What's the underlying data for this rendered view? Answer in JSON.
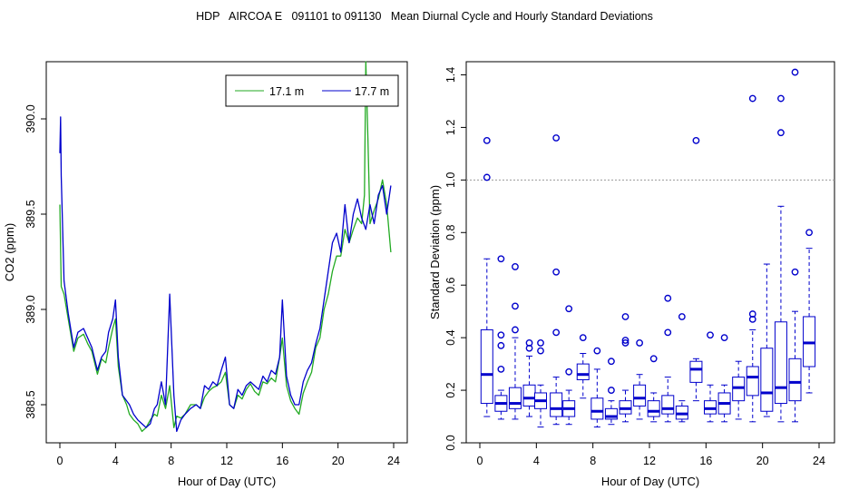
{
  "figure_title": "HDP   AIRCOA E   091101 to 091130   Mean Diurnal Cycle and Hourly Standard Deviations",
  "colors": {
    "green": "#22aa22",
    "blue": "#0000cc",
    "ref_line": "#999999",
    "axis": "#000000"
  },
  "chart_data": [
    {
      "type": "line",
      "title": "",
      "xlabel": "Hour of Day (UTC)",
      "ylabel": "CO2 (ppm)",
      "xlim": [
        0,
        24
      ],
      "ylim": [
        388.3,
        390.3
      ],
      "xticks": [
        0,
        4,
        8,
        12,
        16,
        20,
        24
      ],
      "xtick_labels": [
        "0",
        "4",
        "8",
        "12",
        "16",
        "20",
        "24"
      ],
      "yticks": [
        388.5,
        389.0,
        389.5,
        390.0
      ],
      "ytick_labels": [
        "388.5",
        "389.0",
        "389.5",
        "390.0"
      ],
      "legend": "top-right",
      "series": [
        {
          "name": "17.1 m",
          "color": "#22aa22",
          "x": [
            0.0,
            0.1,
            0.3,
            0.6,
            1.0,
            1.3,
            1.7,
            2.0,
            2.3,
            2.7,
            3.0,
            3.3,
            3.5,
            3.8,
            4.0,
            4.2,
            4.5,
            4.8,
            5.0,
            5.3,
            5.6,
            5.9,
            6.2,
            6.5,
            6.8,
            7.0,
            7.3,
            7.6,
            7.9,
            8.2,
            8.4,
            8.7,
            9.0,
            9.4,
            9.8,
            10.1,
            10.4,
            10.7,
            11.0,
            11.3,
            11.6,
            11.9,
            12.2,
            12.5,
            12.8,
            13.1,
            13.4,
            13.7,
            14.0,
            14.3,
            14.6,
            14.9,
            15.2,
            15.5,
            15.8,
            16.0,
            16.3,
            16.6,
            16.9,
            17.2,
            17.5,
            17.8,
            18.1,
            18.4,
            18.7,
            19.0,
            19.3,
            19.6,
            19.9,
            20.2,
            20.5,
            20.8,
            21.1,
            21.4,
            21.7,
            21.9,
            22.0,
            22.15,
            22.3,
            22.6,
            22.9,
            23.2,
            23.5,
            23.8
          ],
          "values": [
            389.55,
            389.12,
            389.08,
            388.95,
            388.78,
            388.85,
            388.87,
            388.82,
            388.78,
            388.66,
            388.74,
            388.72,
            388.8,
            388.9,
            388.95,
            388.7,
            388.55,
            388.5,
            388.45,
            388.42,
            388.4,
            388.36,
            388.38,
            388.42,
            388.45,
            388.44,
            388.55,
            388.48,
            388.6,
            388.38,
            388.44,
            388.43,
            388.45,
            388.5,
            388.5,
            388.48,
            388.54,
            388.57,
            388.59,
            388.6,
            388.62,
            388.67,
            388.5,
            388.48,
            388.55,
            388.53,
            388.58,
            388.61,
            388.57,
            388.55,
            388.62,
            388.61,
            388.64,
            388.62,
            388.75,
            388.85,
            388.6,
            388.52,
            388.48,
            388.45,
            388.56,
            388.62,
            388.67,
            388.8,
            388.85,
            389.0,
            389.08,
            389.2,
            389.28,
            389.28,
            389.42,
            389.35,
            389.42,
            389.48,
            389.45,
            389.6,
            390.3,
            389.9,
            389.45,
            389.52,
            389.58,
            389.68,
            389.55,
            389.3
          ]
        },
        {
          "name": "17.7 m",
          "color": "#0000cc",
          "x": [
            0.0,
            0.05,
            0.1,
            0.3,
            0.6,
            1.0,
            1.3,
            1.7,
            2.0,
            2.3,
            2.7,
            3.0,
            3.3,
            3.5,
            3.8,
            4.0,
            4.2,
            4.5,
            4.8,
            5.0,
            5.3,
            5.6,
            5.9,
            6.2,
            6.5,
            6.8,
            7.0,
            7.3,
            7.6,
            7.9,
            8.2,
            8.4,
            8.7,
            9.0,
            9.4,
            9.8,
            10.1,
            10.4,
            10.7,
            11.0,
            11.3,
            11.6,
            11.9,
            12.2,
            12.5,
            12.8,
            13.1,
            13.4,
            13.7,
            14.0,
            14.3,
            14.6,
            14.9,
            15.2,
            15.5,
            15.8,
            16.0,
            16.3,
            16.6,
            16.9,
            17.2,
            17.5,
            17.8,
            18.1,
            18.4,
            18.7,
            19.0,
            19.3,
            19.6,
            19.9,
            20.2,
            20.5,
            20.8,
            21.1,
            21.4,
            21.7,
            22.0,
            22.3,
            22.6,
            22.9,
            23.2,
            23.5,
            23.8
          ],
          "values": [
            389.82,
            390.01,
            389.7,
            389.15,
            388.98,
            388.8,
            388.88,
            388.9,
            388.85,
            388.8,
            388.68,
            388.75,
            388.78,
            388.88,
            388.95,
            389.05,
            388.75,
            388.55,
            388.52,
            388.5,
            388.45,
            388.42,
            388.4,
            388.38,
            388.4,
            388.48,
            388.5,
            388.62,
            388.5,
            389.08,
            388.55,
            388.36,
            388.42,
            388.45,
            388.48,
            388.5,
            388.48,
            388.6,
            388.58,
            388.62,
            388.6,
            388.68,
            388.75,
            388.5,
            388.48,
            388.58,
            388.55,
            388.6,
            388.62,
            388.6,
            388.58,
            388.65,
            388.62,
            388.68,
            388.66,
            388.75,
            389.05,
            388.65,
            388.55,
            388.5,
            388.5,
            388.62,
            388.68,
            388.72,
            388.82,
            388.9,
            389.05,
            389.2,
            389.35,
            389.4,
            389.3,
            389.55,
            389.35,
            389.5,
            389.58,
            389.48,
            389.42,
            389.55,
            389.45,
            389.6,
            389.65,
            389.5,
            389.65
          ]
        }
      ]
    },
    {
      "type": "box",
      "title": "",
      "xlabel": "Hour of Day (UTC)",
      "ylabel": "Standard Deviation (ppm)",
      "xlim": [
        0,
        24
      ],
      "ylim": [
        0.0,
        1.45
      ],
      "xticks": [
        0,
        4,
        8,
        12,
        16,
        20,
        24
      ],
      "xtick_labels": [
        "0",
        "4",
        "8",
        "12",
        "16",
        "20",
        "24"
      ],
      "yticks": [
        0.0,
        0.2,
        0.4,
        0.6,
        0.8,
        1.0,
        1.2,
        1.4
      ],
      "ytick_labels": [
        "0.0",
        "0.2",
        "0.4",
        "0.6",
        "0.8",
        "1.0",
        "1.2",
        "1.4"
      ],
      "reference_line": 1.0,
      "boxes": [
        {
          "hour": 0.5,
          "wlo": 0.1,
          "q1": 0.15,
          "med": 0.26,
          "q3": 0.43,
          "whi": 0.7,
          "outliers": [
            1.01,
            1.15
          ]
        },
        {
          "hour": 1.5,
          "wlo": 0.09,
          "q1": 0.12,
          "med": 0.15,
          "q3": 0.18,
          "whi": 0.2,
          "outliers": [
            0.28,
            0.37,
            0.41,
            0.7
          ]
        },
        {
          "hour": 2.5,
          "wlo": 0.09,
          "q1": 0.13,
          "med": 0.15,
          "q3": 0.21,
          "whi": 0.4,
          "outliers": [
            0.43,
            0.52,
            0.67
          ]
        },
        {
          "hour": 3.5,
          "wlo": 0.1,
          "q1": 0.14,
          "med": 0.17,
          "q3": 0.22,
          "whi": 0.33,
          "outliers": [
            0.36,
            0.38
          ]
        },
        {
          "hour": 4.3,
          "wlo": 0.06,
          "q1": 0.13,
          "med": 0.16,
          "q3": 0.19,
          "whi": 0.22,
          "outliers": [
            0.35,
            0.38
          ]
        },
        {
          "hour": 5.4,
          "wlo": 0.07,
          "q1": 0.1,
          "med": 0.13,
          "q3": 0.19,
          "whi": 0.25,
          "outliers": [
            0.42,
            0.65,
            1.16
          ]
        },
        {
          "hour": 6.3,
          "wlo": 0.07,
          "q1": 0.1,
          "med": 0.13,
          "q3": 0.16,
          "whi": 0.2,
          "outliers": [
            0.27,
            0.51
          ]
        },
        {
          "hour": 7.3,
          "wlo": 0.17,
          "q1": 0.24,
          "med": 0.26,
          "q3": 0.3,
          "whi": 0.34,
          "outliers": [
            0.4
          ]
        },
        {
          "hour": 8.3,
          "wlo": 0.06,
          "q1": 0.09,
          "med": 0.12,
          "q3": 0.17,
          "whi": 0.28,
          "outliers": [
            0.35
          ]
        },
        {
          "hour": 9.3,
          "wlo": 0.07,
          "q1": 0.09,
          "med": 0.1,
          "q3": 0.13,
          "whi": 0.16,
          "outliers": [
            0.2,
            0.31
          ]
        },
        {
          "hour": 10.3,
          "wlo": 0.08,
          "q1": 0.11,
          "med": 0.13,
          "q3": 0.16,
          "whi": 0.2,
          "outliers": [
            0.38,
            0.39,
            0.48
          ]
        },
        {
          "hour": 11.3,
          "wlo": 0.09,
          "q1": 0.14,
          "med": 0.17,
          "q3": 0.22,
          "whi": 0.26,
          "outliers": [
            0.38
          ]
        },
        {
          "hour": 12.3,
          "wlo": 0.08,
          "q1": 0.1,
          "med": 0.12,
          "q3": 0.16,
          "whi": 0.19,
          "outliers": [
            0.32
          ]
        },
        {
          "hour": 13.3,
          "wlo": 0.08,
          "q1": 0.11,
          "med": 0.13,
          "q3": 0.18,
          "whi": 0.25,
          "outliers": [
            0.42,
            0.55
          ]
        },
        {
          "hour": 14.3,
          "wlo": 0.08,
          "q1": 0.09,
          "med": 0.11,
          "q3": 0.14,
          "whi": 0.16,
          "outliers": [
            0.48
          ]
        },
        {
          "hour": 15.3,
          "wlo": 0.16,
          "q1": 0.23,
          "med": 0.28,
          "q3": 0.31,
          "whi": 0.32,
          "outliers": [
            1.15
          ]
        },
        {
          "hour": 16.3,
          "wlo": 0.08,
          "q1": 0.11,
          "med": 0.13,
          "q3": 0.16,
          "whi": 0.22,
          "outliers": [
            0.41
          ]
        },
        {
          "hour": 17.3,
          "wlo": 0.08,
          "q1": 0.11,
          "med": 0.15,
          "q3": 0.19,
          "whi": 0.22,
          "outliers": [
            0.4
          ]
        },
        {
          "hour": 18.3,
          "wlo": 0.09,
          "q1": 0.16,
          "med": 0.21,
          "q3": 0.25,
          "whi": 0.31,
          "outliers": []
        },
        {
          "hour": 19.3,
          "wlo": 0.08,
          "q1": 0.18,
          "med": 0.25,
          "q3": 0.29,
          "whi": 0.43,
          "outliers": [
            0.47,
            0.49,
            1.31
          ]
        },
        {
          "hour": 20.3,
          "wlo": 0.1,
          "q1": 0.12,
          "med": 0.19,
          "q3": 0.36,
          "whi": 0.68,
          "outliers": []
        },
        {
          "hour": 21.3,
          "wlo": 0.08,
          "q1": 0.15,
          "med": 0.21,
          "q3": 0.46,
          "whi": 0.9,
          "outliers": [
            1.18,
            1.31
          ]
        },
        {
          "hour": 22.3,
          "wlo": 0.08,
          "q1": 0.16,
          "med": 0.23,
          "q3": 0.32,
          "whi": 0.5,
          "outliers": [
            0.65,
            1.41
          ]
        },
        {
          "hour": 23.3,
          "wlo": 0.19,
          "q1": 0.29,
          "med": 0.38,
          "q3": 0.48,
          "whi": 0.74,
          "outliers": [
            0.8
          ]
        }
      ]
    }
  ]
}
